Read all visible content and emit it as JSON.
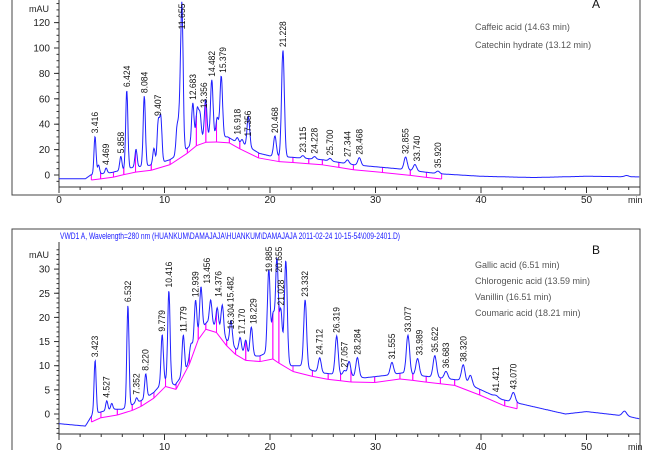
{
  "chart_data": [
    {
      "type": "line",
      "panel_letter": "A",
      "title": "",
      "xlabel": "min",
      "ylabel": "mAU",
      "xlim": [
        0,
        55
      ],
      "ylim": [
        -5,
        135
      ],
      "xticks": [
        0,
        10,
        20,
        30,
        40,
        50
      ],
      "yticks": [
        0,
        20,
        40,
        60,
        80,
        100,
        120
      ],
      "legend": [
        "Caffeic acid (14.63 min)",
        "Catechin hydrate (13.12 min)"
      ],
      "legend_placement": "top-right",
      "baseline": [
        [
          0,
          -3
        ],
        [
          2.5,
          -3
        ],
        [
          3,
          0
        ],
        [
          5,
          2
        ],
        [
          7,
          6
        ],
        [
          9,
          8
        ],
        [
          10.5,
          12
        ],
        [
          12,
          20
        ],
        [
          13,
          27
        ],
        [
          14,
          30
        ],
        [
          16,
          30
        ],
        [
          17,
          25
        ],
        [
          18,
          22
        ],
        [
          19,
          17
        ],
        [
          20,
          15
        ],
        [
          22,
          14
        ],
        [
          25,
          12
        ],
        [
          28,
          8
        ],
        [
          32,
          5
        ],
        [
          36,
          1
        ],
        [
          40,
          -1
        ],
        [
          45,
          -2
        ],
        [
          50,
          -1
        ],
        [
          55,
          -1.5
        ]
      ],
      "peaks": [
        {
          "rt": 3.416,
          "h": 30,
          "label": "3.416"
        },
        {
          "rt": 3.75,
          "h": 7
        },
        {
          "rt": 4.469,
          "h": 4,
          "label": "4.469"
        },
        {
          "rt": 5.858,
          "h": 11,
          "label": "5.858"
        },
        {
          "rt": 6.424,
          "h": 62,
          "label": "6.424"
        },
        {
          "rt": 7.3,
          "h": 14
        },
        {
          "rt": 8.084,
          "h": 55,
          "label": "8.084"
        },
        {
          "rt": 9.0,
          "h": 13
        },
        {
          "rt": 9.407,
          "h": 32,
          "label": "9.407"
        },
        {
          "rt": 9.65,
          "h": 35
        },
        {
          "rt": 11.2,
          "h": 22
        },
        {
          "rt": 11.45,
          "h": 30
        },
        {
          "rt": 11.655,
          "h": 112,
          "label": "11.655"
        },
        {
          "rt": 12.683,
          "h": 32,
          "label": "12.683"
        },
        {
          "rt": 13.1,
          "h": 24
        },
        {
          "rt": 13.356,
          "h": 20,
          "label": "13.356"
        },
        {
          "rt": 13.9,
          "h": 30
        },
        {
          "rt": 14.482,
          "h": 45,
          "label": "14.482"
        },
        {
          "rt": 15.0,
          "h": 15
        },
        {
          "rt": 15.379,
          "h": 48,
          "label": "15.379"
        },
        {
          "rt": 16.918,
          "h": 4,
          "label": "16.918"
        },
        {
          "rt": 17.356,
          "h": 4,
          "label": "17.356"
        },
        {
          "rt": 17.95,
          "h": 24
        },
        {
          "rt": 20.468,
          "h": 16,
          "label": "20.468"
        },
        {
          "rt": 21.228,
          "h": 84,
          "label": "21.228"
        },
        {
          "rt": 23.115,
          "h": 2,
          "label": "23.115"
        },
        {
          "rt": 24.228,
          "h": 2,
          "label": "24.228"
        },
        {
          "rt": 25.7,
          "h": 2,
          "label": "25.700"
        },
        {
          "rt": 27.344,
          "h": 3,
          "label": "27.344"
        },
        {
          "rt": 28.468,
          "h": 6,
          "label": "28.468"
        },
        {
          "rt": 32.855,
          "h": 10,
          "label": "32.855"
        },
        {
          "rt": 33.74,
          "h": 5,
          "label": "33.740"
        },
        {
          "rt": 35.92,
          "h": 2,
          "label": "35.920"
        },
        {
          "rt": 53.8,
          "h": 1
        }
      ]
    },
    {
      "type": "line",
      "panel_letter": "B",
      "title": "VWD1 A, Wavelength=280 nm (HUANKUM\\DAMAJAJA\\HUANKUM\\DAMAJAJA 2011-02-24 10-15-54\\009-2401.D)",
      "xlabel": "min",
      "ylabel": "mAU",
      "xlim": [
        0,
        55
      ],
      "ylim": [
        -4.5,
        34
      ],
      "xticks": [
        0,
        10,
        20,
        30,
        40,
        50
      ],
      "yticks": [
        0,
        5,
        10,
        15,
        20,
        25,
        30
      ],
      "legend": [
        "Gallic acid (6.51 min)",
        "Chlorogenic acid (13.59 min)",
        "Vanillin (16.51 min)",
        "Coumaric acid (18.21 min)"
      ],
      "legend_placement": "top-right",
      "baseline": [
        [
          0,
          -2
        ],
        [
          2.5,
          -2.5
        ],
        [
          3.2,
          0
        ],
        [
          5,
          1
        ],
        [
          6,
          1
        ],
        [
          8,
          3
        ],
        [
          9,
          4.5
        ],
        [
          10,
          7
        ],
        [
          11,
          6
        ],
        [
          12,
          9
        ],
        [
          13,
          16
        ],
        [
          14,
          19
        ],
        [
          15,
          18
        ],
        [
          16,
          15
        ],
        [
          17,
          13
        ],
        [
          18,
          12
        ],
        [
          19,
          12
        ],
        [
          20,
          13
        ],
        [
          21,
          11.5
        ],
        [
          22,
          10
        ],
        [
          23,
          10
        ],
        [
          24,
          9
        ],
        [
          25,
          8.5
        ],
        [
          27,
          8
        ],
        [
          29,
          7.5
        ],
        [
          31,
          8
        ],
        [
          32.5,
          8.5
        ],
        [
          34,
          8
        ],
        [
          36,
          7.5
        ],
        [
          38,
          7
        ],
        [
          40,
          5
        ],
        [
          42,
          3
        ],
        [
          44,
          2
        ],
        [
          46,
          1
        ],
        [
          48,
          0
        ],
        [
          50,
          0.5
        ],
        [
          52,
          0
        ],
        [
          54,
          -0.5
        ],
        [
          55,
          -1
        ]
      ],
      "peaks": [
        {
          "rt": 3.423,
          "h": 11,
          "label": "3.423"
        },
        {
          "rt": 4.527,
          "h": 2,
          "label": "4.527"
        },
        {
          "rt": 5.0,
          "h": 1.2
        },
        {
          "rt": 6.532,
          "h": 21,
          "label": "6.532"
        },
        {
          "rt": 7.352,
          "h": 1,
          "label": "7.352"
        },
        {
          "rt": 8.22,
          "h": 5,
          "label": "8.220"
        },
        {
          "rt": 9.779,
          "h": 10,
          "label": "9.779"
        },
        {
          "rt": 10.416,
          "h": 19,
          "label": "10.416"
        },
        {
          "rt": 11.779,
          "h": 8,
          "label": "11.779"
        },
        {
          "rt": 12.5,
          "h": 2
        },
        {
          "rt": 12.939,
          "h": 8,
          "label": "12.939"
        },
        {
          "rt": 13.456,
          "h": 9,
          "label": "13.456"
        },
        {
          "rt": 14.376,
          "h": 5,
          "label": "14.376"
        },
        {
          "rt": 15.0,
          "h": 4
        },
        {
          "rt": 15.482,
          "h": 6,
          "label": "15.482"
        },
        {
          "rt": 16.304,
          "h": 5,
          "label": "16.304"
        },
        {
          "rt": 17.17,
          "h": 3,
          "label": "17.170"
        },
        {
          "rt": 17.7,
          "h": 3
        },
        {
          "rt": 18.229,
          "h": 6,
          "label": "18.229"
        },
        {
          "rt": 19.885,
          "h": 17,
          "label": "19.885"
        },
        {
          "rt": 20.3,
          "h": 8
        },
        {
          "rt": 20.655,
          "h": 20,
          "label": "20.655"
        },
        {
          "rt": 21.028,
          "h": 10,
          "label": "21.028"
        },
        {
          "rt": 21.5,
          "h": 21
        },
        {
          "rt": 23.332,
          "h": 14,
          "label": "23.332"
        },
        {
          "rt": 24.712,
          "h": 3,
          "label": "24.712"
        },
        {
          "rt": 26.319,
          "h": 8,
          "label": "26.319"
        },
        {
          "rt": 27.057,
          "h": 1,
          "label": "27.057"
        },
        {
          "rt": 27.5,
          "h": 3
        },
        {
          "rt": 28.284,
          "h": 4,
          "label": "28.284"
        },
        {
          "rt": 31.555,
          "h": 2.5,
          "label": "31.555"
        },
        {
          "rt": 33.077,
          "h": 8,
          "label": "33.077"
        },
        {
          "rt": 33.989,
          "h": 3.5,
          "label": "33.989"
        },
        {
          "rt": 35.622,
          "h": 4.5,
          "label": "35.622"
        },
        {
          "rt": 36.683,
          "h": 1.5,
          "label": "36.683"
        },
        {
          "rt": 38.32,
          "h": 3.5,
          "label": "38.320"
        },
        {
          "rt": 39.0,
          "h": 2
        },
        {
          "rt": 41.421,
          "h": 0.3,
          "label": "41.421"
        },
        {
          "rt": 43.07,
          "h": 2,
          "label": "43.070"
        },
        {
          "rt": 53.6,
          "h": 1
        }
      ]
    }
  ]
}
